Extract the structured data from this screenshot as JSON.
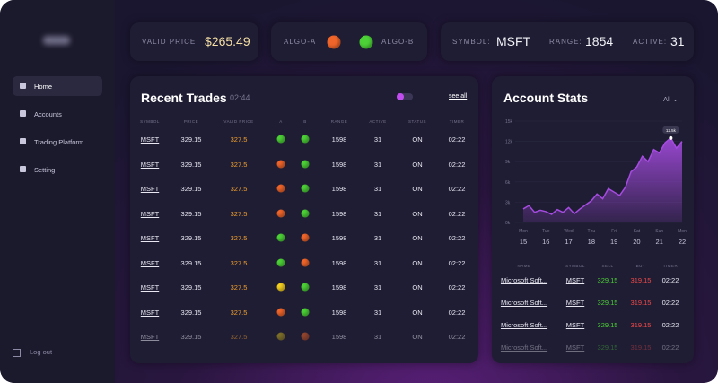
{
  "sidebar": {
    "nav": [
      "Home",
      "Accounts",
      "Trading Platform",
      "Setting"
    ],
    "logout": "Log out"
  },
  "topbar": {
    "valid_price_label": "VALID PRICE",
    "valid_price": "$265.49",
    "algo_a": "ALGO-A",
    "algo_b": "ALGO-B",
    "symbol_label": "SYMBOL:",
    "symbol": "MSFT",
    "range_label": "RANGE:",
    "range": "1854",
    "active_label": "ACTIVE:",
    "active": "31"
  },
  "recent_trades": {
    "title": "Recent Trades",
    "time": "02:44",
    "see_all": "see all",
    "columns": [
      "SYMBOL",
      "PRICE",
      "VALID PRICE",
      "A",
      "B",
      "RANGE",
      "ACTIVE",
      "STATUS",
      "TIMER"
    ],
    "rows": [
      [
        "MSFT",
        "329.15",
        "327.5",
        "#4cd137",
        "#4cd137",
        "1598",
        "31",
        "ON",
        "02:22"
      ],
      [
        "MSFT",
        "329.15",
        "327.5",
        "#f0652a",
        "#4cd137",
        "1598",
        "31",
        "ON",
        "02:22"
      ],
      [
        "MSFT",
        "329.15",
        "327.5",
        "#f0652a",
        "#4cd137",
        "1598",
        "31",
        "ON",
        "02:22"
      ],
      [
        "MSFT",
        "329.15",
        "327.5",
        "#f0652a",
        "#4cd137",
        "1598",
        "31",
        "ON",
        "02:22"
      ],
      [
        "MSFT",
        "329.15",
        "327.5",
        "#4cd137",
        "#f0652a",
        "1598",
        "31",
        "ON",
        "02:22"
      ],
      [
        "MSFT",
        "329.15",
        "327.5",
        "#4cd137",
        "#f0652a",
        "1598",
        "31",
        "ON",
        "02:22"
      ],
      [
        "MSFT",
        "329.15",
        "327.5",
        "#f5d020",
        "#4cd137",
        "1598",
        "31",
        "ON",
        "02:22"
      ],
      [
        "MSFT",
        "329.15",
        "327.5",
        "#f0652a",
        "#4cd137",
        "1598",
        "31",
        "ON",
        "02:22"
      ],
      [
        "MSFT",
        "329.15",
        "327.5",
        "#c9b020",
        "#f0652a",
        "1598",
        "31",
        "ON",
        "02:22"
      ]
    ]
  },
  "account_stats": {
    "title": "Account Stats",
    "filter": "All",
    "chart_data": {
      "type": "area",
      "color": "#a54be0",
      "x": [
        15,
        15.25,
        15.5,
        15.75,
        16,
        16.25,
        16.5,
        16.75,
        17,
        17.25,
        17.5,
        17.75,
        18,
        18.25,
        18.5,
        18.75,
        19,
        19.25,
        19.5,
        19.75,
        20,
        20.25,
        20.5,
        20.75,
        21,
        21.25,
        21.5,
        21.75,
        22
      ],
      "values": [
        2000,
        2500,
        1500,
        1800,
        1600,
        1200,
        1900,
        1500,
        2200,
        1300,
        2000,
        2600,
        3200,
        4200,
        3500,
        5000,
        4500,
        4000,
        5200,
        7500,
        8200,
        9800,
        9000,
        10800,
        10300,
        11800,
        12500,
        11000,
        12000
      ],
      "xlim": [
        15,
        22
      ],
      "xticks": [
        {
          "value": 15,
          "label": "Mon"
        },
        {
          "value": 16,
          "label": "Tue"
        },
        {
          "value": 17,
          "label": "Wed"
        },
        {
          "value": 18,
          "label": "Thu"
        },
        {
          "value": 19,
          "label": "Fri"
        },
        {
          "value": 20,
          "label": "Sat"
        },
        {
          "value": 21,
          "label": "Sun"
        },
        {
          "value": 22,
          "label": "Mon"
        }
      ],
      "ylim": [
        0,
        15000
      ],
      "yticks": [
        {
          "value": 0,
          "label": "0k"
        },
        {
          "value": 3000,
          "label": "3k"
        },
        {
          "value": 6000,
          "label": "6k"
        },
        {
          "value": 9000,
          "label": "9k"
        },
        {
          "value": 12000,
          "label": "12k"
        },
        {
          "value": 15000,
          "label": "15k"
        }
      ],
      "annotation": {
        "x": 21.5,
        "y": 12500,
        "label": "12.5k"
      }
    },
    "columns": [
      "NAME",
      "SYMBOL",
      "SELL",
      "BUY",
      "TIMER"
    ],
    "rows": [
      [
        "Microsoft Soft...",
        "MSFT",
        "329.15",
        "319.15",
        "02:22"
      ],
      [
        "Microsoft Soft...",
        "MSFT",
        "329.15",
        "319.15",
        "02:22"
      ],
      [
        "Microsoft Soft...",
        "MSFT",
        "329.15",
        "319.15",
        "02:22"
      ],
      [
        "Microsoft Soft...",
        "MSFT",
        "329.15",
        "319.15",
        "02:22"
      ]
    ]
  }
}
